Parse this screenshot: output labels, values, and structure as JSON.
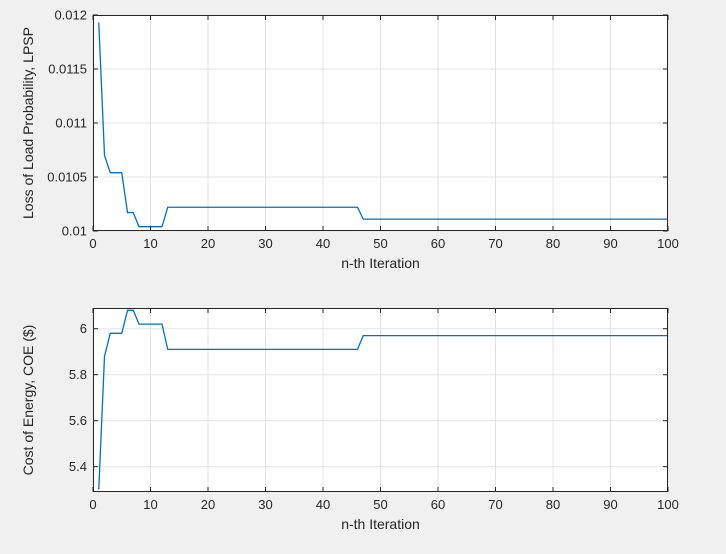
{
  "figure": {
    "background": "#f0f0f0",
    "axes_background": "#ffffff",
    "line_color": "#0072bd",
    "grid_color": "#e3e3e3",
    "axis_color": "#262626"
  },
  "chart_data": [
    {
      "type": "line",
      "title": "",
      "xlabel": "n-th Iteration",
      "ylabel": "Loss of Load Probability, LPSP",
      "xlim": [
        0,
        100
      ],
      "ylim": [
        0.01,
        0.012
      ],
      "xticks": [
        0,
        10,
        20,
        30,
        40,
        50,
        60,
        70,
        80,
        90,
        100
      ],
      "xtick_labels": [
        "0",
        "10",
        "20",
        "30",
        "40",
        "50",
        "60",
        "70",
        "80",
        "90",
        "100"
      ],
      "yticks": [
        0.01,
        0.0105,
        0.011,
        0.0115,
        0.012
      ],
      "ytick_labels": [
        "0.01",
        "0.0105",
        "0.011",
        "0.0115",
        "0.012"
      ],
      "grid": true,
      "series": [
        {
          "x": [
            1,
            2,
            3,
            4,
            5,
            6,
            7,
            8,
            9,
            10,
            11,
            12,
            13,
            14,
            46,
            47,
            100
          ],
          "y": [
            0.01193,
            0.0107,
            0.01054,
            0.01054,
            0.01054,
            0.01017,
            0.01017,
            0.01004,
            0.01004,
            0.01004,
            0.01004,
            0.01004,
            0.01022,
            0.01022,
            0.01022,
            0.01011,
            0.01011
          ]
        }
      ]
    },
    {
      "type": "line",
      "title": "",
      "xlabel": "n-th Iteration",
      "ylabel": "Cost of Energy, COE ($)",
      "xlim": [
        0,
        100
      ],
      "ylim": [
        5.29,
        6.09
      ],
      "xticks": [
        0,
        10,
        20,
        30,
        40,
        50,
        60,
        70,
        80,
        90,
        100
      ],
      "xtick_labels": [
        "0",
        "10",
        "20",
        "30",
        "40",
        "50",
        "60",
        "70",
        "80",
        "90",
        "100"
      ],
      "yticks": [
        5.4,
        5.6,
        5.8,
        6.0
      ],
      "ytick_labels": [
        "5.4",
        "5.6",
        "5.8",
        "6"
      ],
      "grid": true,
      "series": [
        {
          "x": [
            1,
            2,
            3,
            4,
            5,
            6,
            7,
            8,
            9,
            10,
            11,
            12,
            13,
            14,
            46,
            47,
            100
          ],
          "y": [
            5.3,
            5.88,
            5.98,
            5.98,
            5.98,
            6.08,
            6.08,
            6.02,
            6.02,
            6.02,
            6.02,
            6.02,
            5.91,
            5.91,
            5.91,
            5.97,
            5.97
          ]
        }
      ]
    }
  ]
}
